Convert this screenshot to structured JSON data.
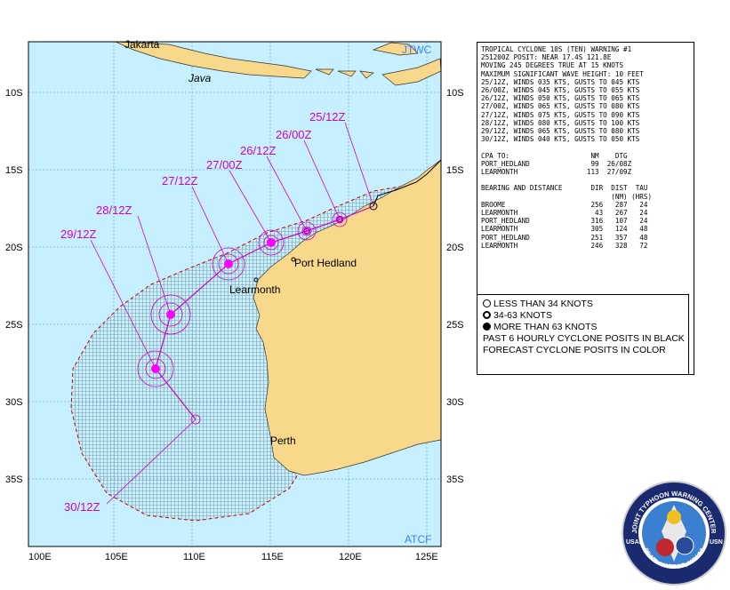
{
  "map": {
    "corner_top_right": "JTWC",
    "corner_bottom_right": "ATCF",
    "lat_labels": [
      "10S",
      "15S",
      "20S",
      "25S",
      "30S",
      "35S"
    ],
    "lon_labels": [
      "100E",
      "105E",
      "110E",
      "115E",
      "120E",
      "125E"
    ],
    "places": {
      "jakarta": "Jakarta",
      "java": "Java",
      "port_hedland": "Port Hedland",
      "learmonth": "Learmonth",
      "perth": "Perth"
    },
    "track_labels": [
      "25/12Z",
      "26/00Z",
      "26/12Z",
      "27/00Z",
      "27/12Z",
      "28/12Z",
      "29/12Z",
      "30/12Z"
    ],
    "colors": {
      "ocean": "#c6f0ff",
      "land": "#f8d88a",
      "track": "#cc00cc",
      "danger": "#cc0000",
      "axis_text": "#3a7fff"
    }
  },
  "warning": {
    "lines": [
      "TROPICAL CYCLONE 10S (TEN) WARNING #1",
      "251200Z POSIT: NEAR 17.4S 121.8E",
      "MOVING 245 DEGREES TRUE AT 15 KNOTS",
      "MAXIMUM SIGNIFICANT WAVE HEIGHT: 10 FEET",
      "25/12Z, WINDS 035 KTS, GUSTS TO 045 KTS",
      "26/00Z, WINDS 045 KTS, GUSTS TO 055 KTS",
      "26/12Z, WINDS 050 KTS, GUSTS TO 065 KTS",
      "27/00Z, WINDS 065 KTS, GUSTS TO 080 KTS",
      "27/12Z, WINDS 075 KTS, GUSTS TO 090 KTS",
      "28/12Z, WINDS 080 KTS, GUSTS TO 100 KTS",
      "29/12Z, WINDS 065 KTS, GUSTS TO 080 KTS",
      "30/12Z, WINDS 040 KTS, GUSTS TO 050 KTS",
      "",
      "CPA TO:                    NM    DTG",
      "PORT_HEDLAND               99  26/08Z",
      "LEARMONTH                 113  27/09Z",
      "",
      "BEARING AND DISTANCE       DIR  DIST  TAU",
      "                                (NM) (HRS)",
      "BROOME                     256   287   24",
      "LEARMONTH                   43   267   24",
      "PORT_HEDLAND               316   107   24",
      "LEARMONTH                  305   124   48",
      "PORT_HEDLAND               251   357   48",
      "LEARMONTH                  246   328   72"
    ]
  },
  "legend": {
    "items": [
      "LESS THAN 34 KNOTS",
      "34-63 KNOTS",
      "MORE THAN 63 KNOTS"
    ],
    "notes": [
      "PAST 6 HOURLY CYCLONE POSITS IN BLACK",
      "FORECAST CYCLONE POSITS IN COLOR"
    ]
  },
  "seal": {
    "text_top": "JOINT TYPHOON WARNING CENTER",
    "text_left": "USAF",
    "text_right": "USN",
    "text_bottom": "PEARL HARBOR, HAWAII"
  }
}
